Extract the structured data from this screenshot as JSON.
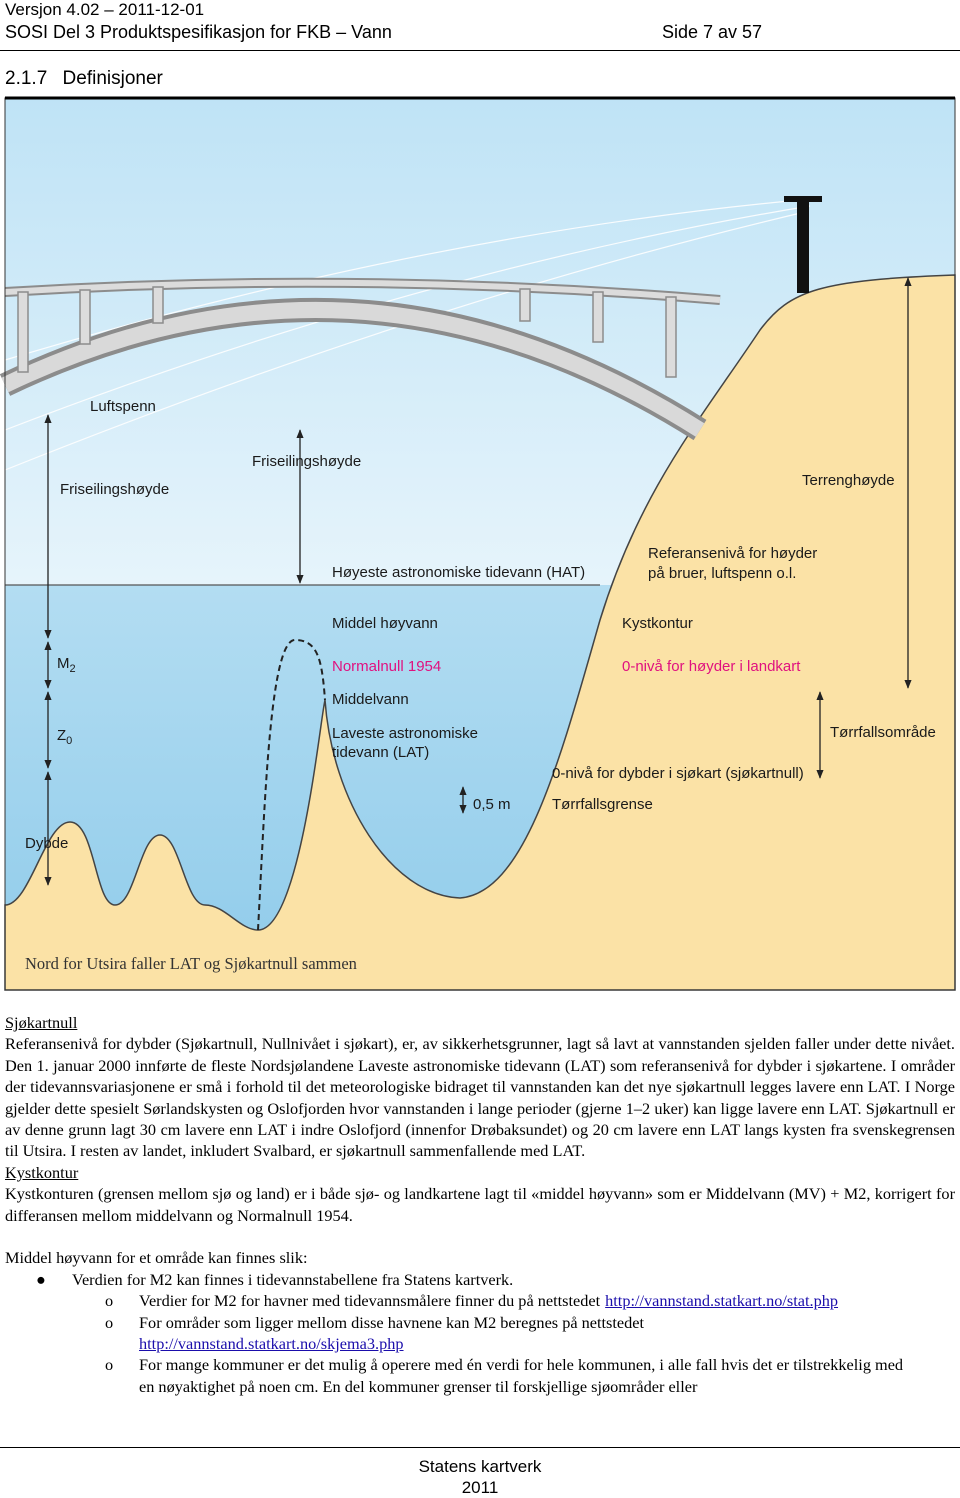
{
  "header": {
    "version": "Versjon 4.02 – 2011-12-01",
    "title": "SOSI Del 3 Produktspesifikasjon for FKB – Vann",
    "page": "Side 7 av 57"
  },
  "section": {
    "number": "2.1.7",
    "title": "Definisjoner"
  },
  "diagram": {
    "luftspenn": "Luftspenn",
    "friseilingshoyde_left": "Friseilingshøyde",
    "friseilingshoyde_center": "Friseilingshøyde",
    "hat": "Høyeste astronomiske tidevann (HAT)",
    "terrenghoyde": "Terrenghøyde",
    "referanseniva": [
      "Referansenivå for høyder",
      "på bruer, luftspenn o.l."
    ],
    "middel_hoyvann": "Middel høyvann",
    "kystkontur": "Kystkontur",
    "m2": {
      "main": "M",
      "sub": "2"
    },
    "normalnull": "Normalnull 1954",
    "null_niva_land": "0-nivå for høyder i landkart",
    "middelvann": "Middelvann",
    "z0": {
      "main": "Z",
      "sub": "0"
    },
    "lat": [
      "Laveste astronomiske",
      "tidevann (LAT)"
    ],
    "torrfallsomrade": "Tørrfallsområde",
    "null_niva_sjo": "0-nivå for dybder i sjøkart (sjøkartnull)",
    "half_meter": "0,5 m",
    "torrfallsgrense": "Tørrfallsgrense",
    "dybde": "Dybde",
    "caption": "Nord for Utsira faller LAT og Sjøkartnull sammen"
  },
  "body": {
    "sections": [
      {
        "heading": "Sjøkartnull",
        "text": "Referansenivå for dybder (Sjøkartnull, Nullnivået i sjøkart), er, av sikkerhetsgrunner, lagt så lavt at vannstanden sjelden faller under dette nivået. Den 1. januar 2000 innførte de fleste Nordsjølandene Laveste astronomiske tidevann (LAT) som referansenivå for dybder i sjøkartene. I områder der tidevannsvariasjonene er små i forhold til det meteorologiske bidraget til vannstanden kan det nye sjøkartnull legges lavere enn LAT. I Norge gjelder dette spesielt Sørlandskysten og Oslofjorden hvor vannstanden i lange perioder (gjerne 1–2 uker) kan ligge lavere enn LAT. Sjøkartnull er av denne grunn lagt 30 cm lavere enn LAT i indre Oslofjord (innenfor Drøbaksundet) og 20 cm lavere enn LAT langs kysten fra svenskegrensen til Utsira. I resten av landet, inkludert Svalbard, er sjøkartnull sammenfallende med LAT."
      },
      {
        "heading": "Kystkontur",
        "text": "Kystkonturen (grensen mellom sjø og land) er i både sjø- og landkartene lagt til «middel høyvann» som er Middelvann (MV) + M2, korrigert for differansen mellom middelvann og Normalnull 1954."
      }
    ],
    "intro": "Middel høyvann for et område kan finnes slik:",
    "bullet": "Verdien for M2 kan finnes i tidevannstabellene fra Statens kartverk.",
    "sub_items": [
      {
        "text": "Verdier for M2 for havner med tidevannsmålere finner du på nettstedet",
        "link": "http://vannstand.statkart.no/stat.php"
      },
      {
        "text": "For områder som ligger mellom disse havnene kan M2 beregnes på nettstedet",
        "link": "http://vannstand.statkart.no/skjema3.php"
      },
      {
        "text": "For mange kommuner er det mulig å operere med én verdi for hele kommunen, i alle fall hvis det er tilstrekkelig med en nøyaktighet på noen cm. En del kommuner grenser til forskjellige sjøområder eller"
      }
    ]
  },
  "footer": {
    "org": "Statens kartverk",
    "year": "2011"
  }
}
